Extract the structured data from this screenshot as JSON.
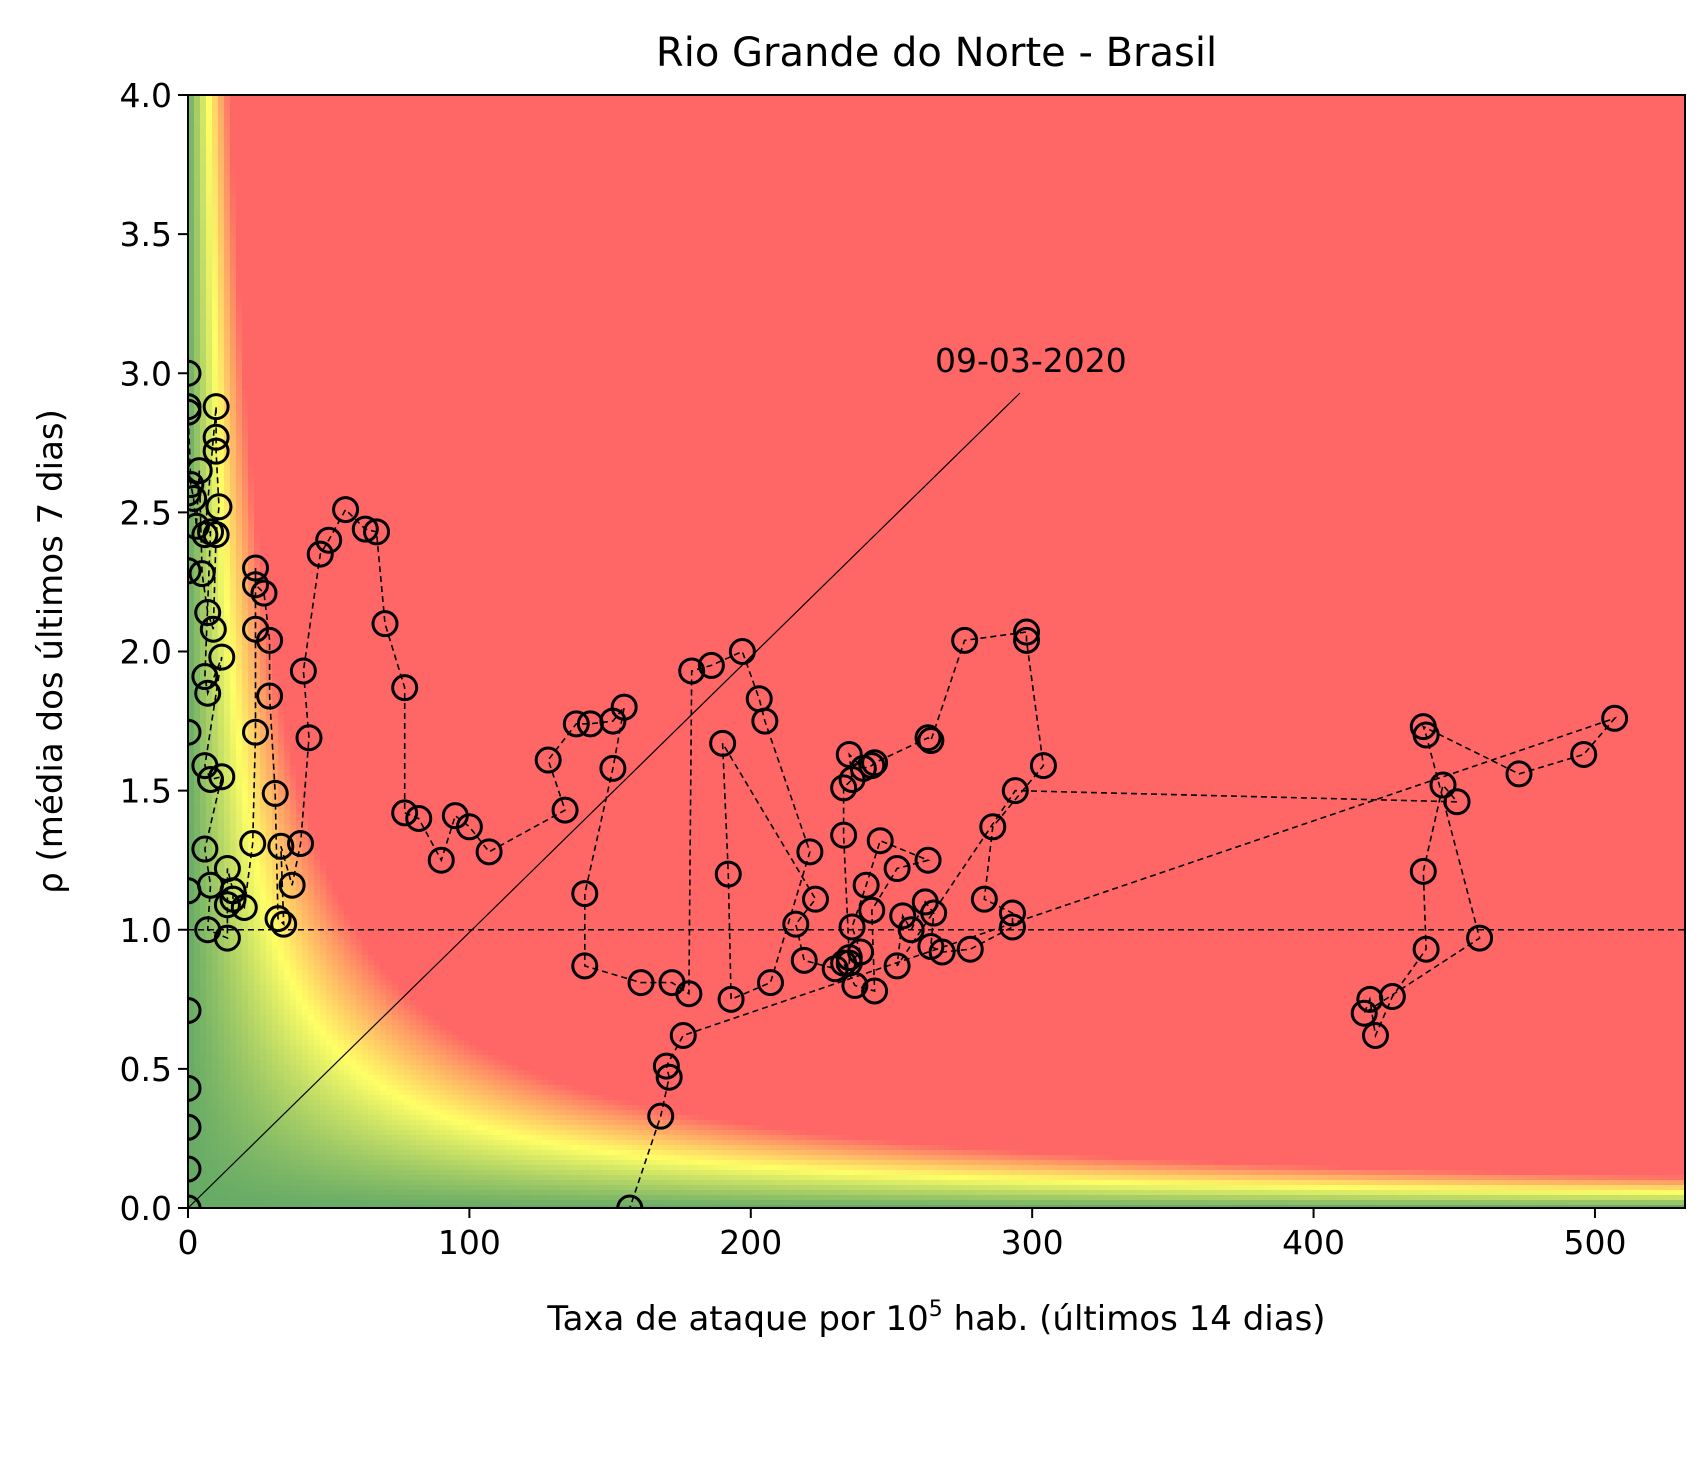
{
  "chart_data": {
    "type": "scatter",
    "title": "Rio Grande do Norte - Brasil",
    "xlabel": "Taxa de ataque por 10",
    "xlabel_sup": "5",
    "xlabel_suffix": " hab. (últimos 14 dias)",
    "ylabel": "ρ (média dos últimos 7 dias)",
    "xlim": [
      0,
      532
    ],
    "ylim": [
      0,
      4.0
    ],
    "xticks": [
      0,
      100,
      200,
      300,
      400,
      500
    ],
    "xtick_labels": [
      "0",
      "100",
      "200",
      "300",
      "400",
      "500"
    ],
    "yticks": [
      0.0,
      0.5,
      1.0,
      1.5,
      2.0,
      2.5,
      3.0,
      3.5,
      4.0
    ],
    "ytick_labels": [
      "0.0",
      "0.5",
      "1.0",
      "1.5",
      "2.0",
      "2.5",
      "3.0",
      "3.5",
      "4.0"
    ],
    "grid": false,
    "reference_line_y": 1.0,
    "background": {
      "type": "risk heatmap",
      "colors": [
        "#66aa66",
        "#ffff66",
        "#ff6666"
      ]
    },
    "annotation": {
      "text": "09-03-2020",
      "x": 0,
      "y": 0
    },
    "markers": "open circles connected by dashed line",
    "series": [
      {
        "points": [
          [
            0,
            0
          ],
          [
            0,
            0.14
          ],
          [
            0,
            0.29
          ],
          [
            0,
            0.43
          ],
          [
            0,
            0.71
          ],
          [
            0,
            1.14
          ],
          [
            0,
            1.71
          ],
          [
            0,
            2.29
          ],
          [
            0,
            2.57
          ],
          [
            0,
            2.86
          ],
          [
            0,
            3.0
          ],
          [
            0,
            2.88
          ],
          [
            1,
            2.6
          ],
          [
            2,
            2.55
          ],
          [
            3,
            2.45
          ],
          [
            4,
            2.65
          ],
          [
            5,
            2.28
          ],
          [
            7,
            2.14
          ],
          [
            9,
            2.08
          ],
          [
            10,
            2.42
          ],
          [
            11,
            2.52
          ],
          [
            10,
            2.72
          ],
          [
            10,
            2.77
          ],
          [
            10,
            2.88
          ],
          [
            6,
            2.42
          ],
          [
            8,
            2.43
          ],
          [
            6,
            1.91
          ],
          [
            7,
            1.85
          ],
          [
            12,
            1.98
          ],
          [
            6,
            1.59
          ],
          [
            8,
            1.54
          ],
          [
            12,
            1.55
          ],
          [
            6,
            1.29
          ],
          [
            8,
            1.16
          ],
          [
            7,
            1.0
          ],
          [
            14,
            0.97
          ],
          [
            14,
            1.09
          ],
          [
            14,
            1.22
          ],
          [
            16,
            1.14
          ],
          [
            16,
            1.11
          ],
          [
            20,
            1.08
          ],
          [
            23,
            1.31
          ],
          [
            24,
            1.71
          ],
          [
            24,
            2.08
          ],
          [
            24,
            2.3
          ],
          [
            24,
            2.24
          ],
          [
            27,
            2.21
          ],
          [
            29,
            2.04
          ],
          [
            29,
            1.84
          ],
          [
            31,
            1.49
          ],
          [
            32,
            1.04
          ],
          [
            34,
            1.02
          ],
          [
            33,
            1.3
          ],
          [
            37,
            1.16
          ],
          [
            40,
            1.31
          ],
          [
            43,
            1.69
          ],
          [
            41,
            1.93
          ],
          [
            47,
            2.35
          ],
          [
            50,
            2.4
          ],
          [
            56,
            2.51
          ],
          [
            63,
            2.44
          ],
          [
            67,
            2.43
          ],
          [
            70,
            2.1
          ],
          [
            77,
            1.87
          ],
          [
            77,
            1.42
          ],
          [
            82,
            1.4
          ],
          [
            90,
            1.25
          ],
          [
            95,
            1.41
          ],
          [
            100,
            1.37
          ],
          [
            107,
            1.28
          ],
          [
            134,
            1.43
          ],
          [
            128,
            1.61
          ],
          [
            138,
            1.74
          ],
          [
            143,
            1.74
          ],
          [
            151,
            1.75
          ],
          [
            155,
            1.8
          ],
          [
            151,
            1.58
          ],
          [
            141,
            1.13
          ],
          [
            141,
            0.87
          ],
          [
            161,
            0.81
          ],
          [
            172,
            0.81
          ],
          [
            178,
            0.77
          ],
          [
            179,
            1.93
          ],
          [
            186,
            1.95
          ],
          [
            197,
            2.0
          ],
          [
            203,
            1.83
          ],
          [
            205,
            1.75
          ],
          [
            221,
            1.28
          ],
          [
            207,
            0.81
          ],
          [
            193,
            0.75
          ],
          [
            192,
            1.2
          ],
          [
            190,
            1.67
          ],
          [
            223,
            1.11
          ],
          [
            216,
            1.02
          ],
          [
            219,
            0.89
          ],
          [
            230,
            0.86
          ],
          [
            233,
            0.88
          ],
          [
            237,
            0.8
          ],
          [
            244,
            0.78
          ],
          [
            243,
            1.07
          ],
          [
            252,
            1.22
          ],
          [
            263,
            1.25
          ],
          [
            246,
            1.32
          ],
          [
            241,
            1.16
          ],
          [
            236,
            1.01
          ],
          [
            239,
            0.92
          ],
          [
            235,
            0.88
          ],
          [
            235,
            0.9
          ],
          [
            233,
            1.34
          ],
          [
            233,
            1.51
          ],
          [
            236,
            1.54
          ],
          [
            235,
            1.63
          ],
          [
            240,
            1.58
          ],
          [
            243,
            1.59
          ],
          [
            244,
            1.6
          ],
          [
            263,
            1.69
          ],
          [
            264,
            1.68
          ],
          [
            276,
            2.04
          ],
          [
            298,
            2.07
          ],
          [
            298,
            2.04
          ],
          [
            304,
            1.59
          ],
          [
            286,
            1.37
          ],
          [
            283,
            1.11
          ],
          [
            293,
            1.06
          ],
          [
            293,
            1.01
          ],
          [
            278,
            0.93
          ],
          [
            268,
            0.92
          ],
          [
            264,
            0.94
          ],
          [
            265,
            1.06
          ],
          [
            262,
            1.1
          ],
          [
            257,
            1.0
          ],
          [
            254,
            1.05
          ],
          [
            252,
            0.87
          ],
          [
            294,
            1.5
          ],
          [
            451,
            1.46
          ],
          [
            446,
            1.52
          ],
          [
            439,
            1.21
          ],
          [
            440,
            0.93
          ],
          [
            428,
            0.76
          ],
          [
            422,
            0.62
          ],
          [
            420,
            0.75
          ],
          [
            418,
            0.7
          ],
          [
            459,
            0.97
          ],
          [
            440,
            1.7
          ],
          [
            439,
            1.73
          ],
          [
            473,
            1.56
          ],
          [
            496,
            1.63
          ],
          [
            507,
            1.76
          ],
          [
            176,
            0.62
          ],
          [
            170,
            0.51
          ],
          [
            171,
            0.47
          ],
          [
            168,
            0.33
          ],
          [
            157,
            0
          ]
        ]
      }
    ]
  }
}
